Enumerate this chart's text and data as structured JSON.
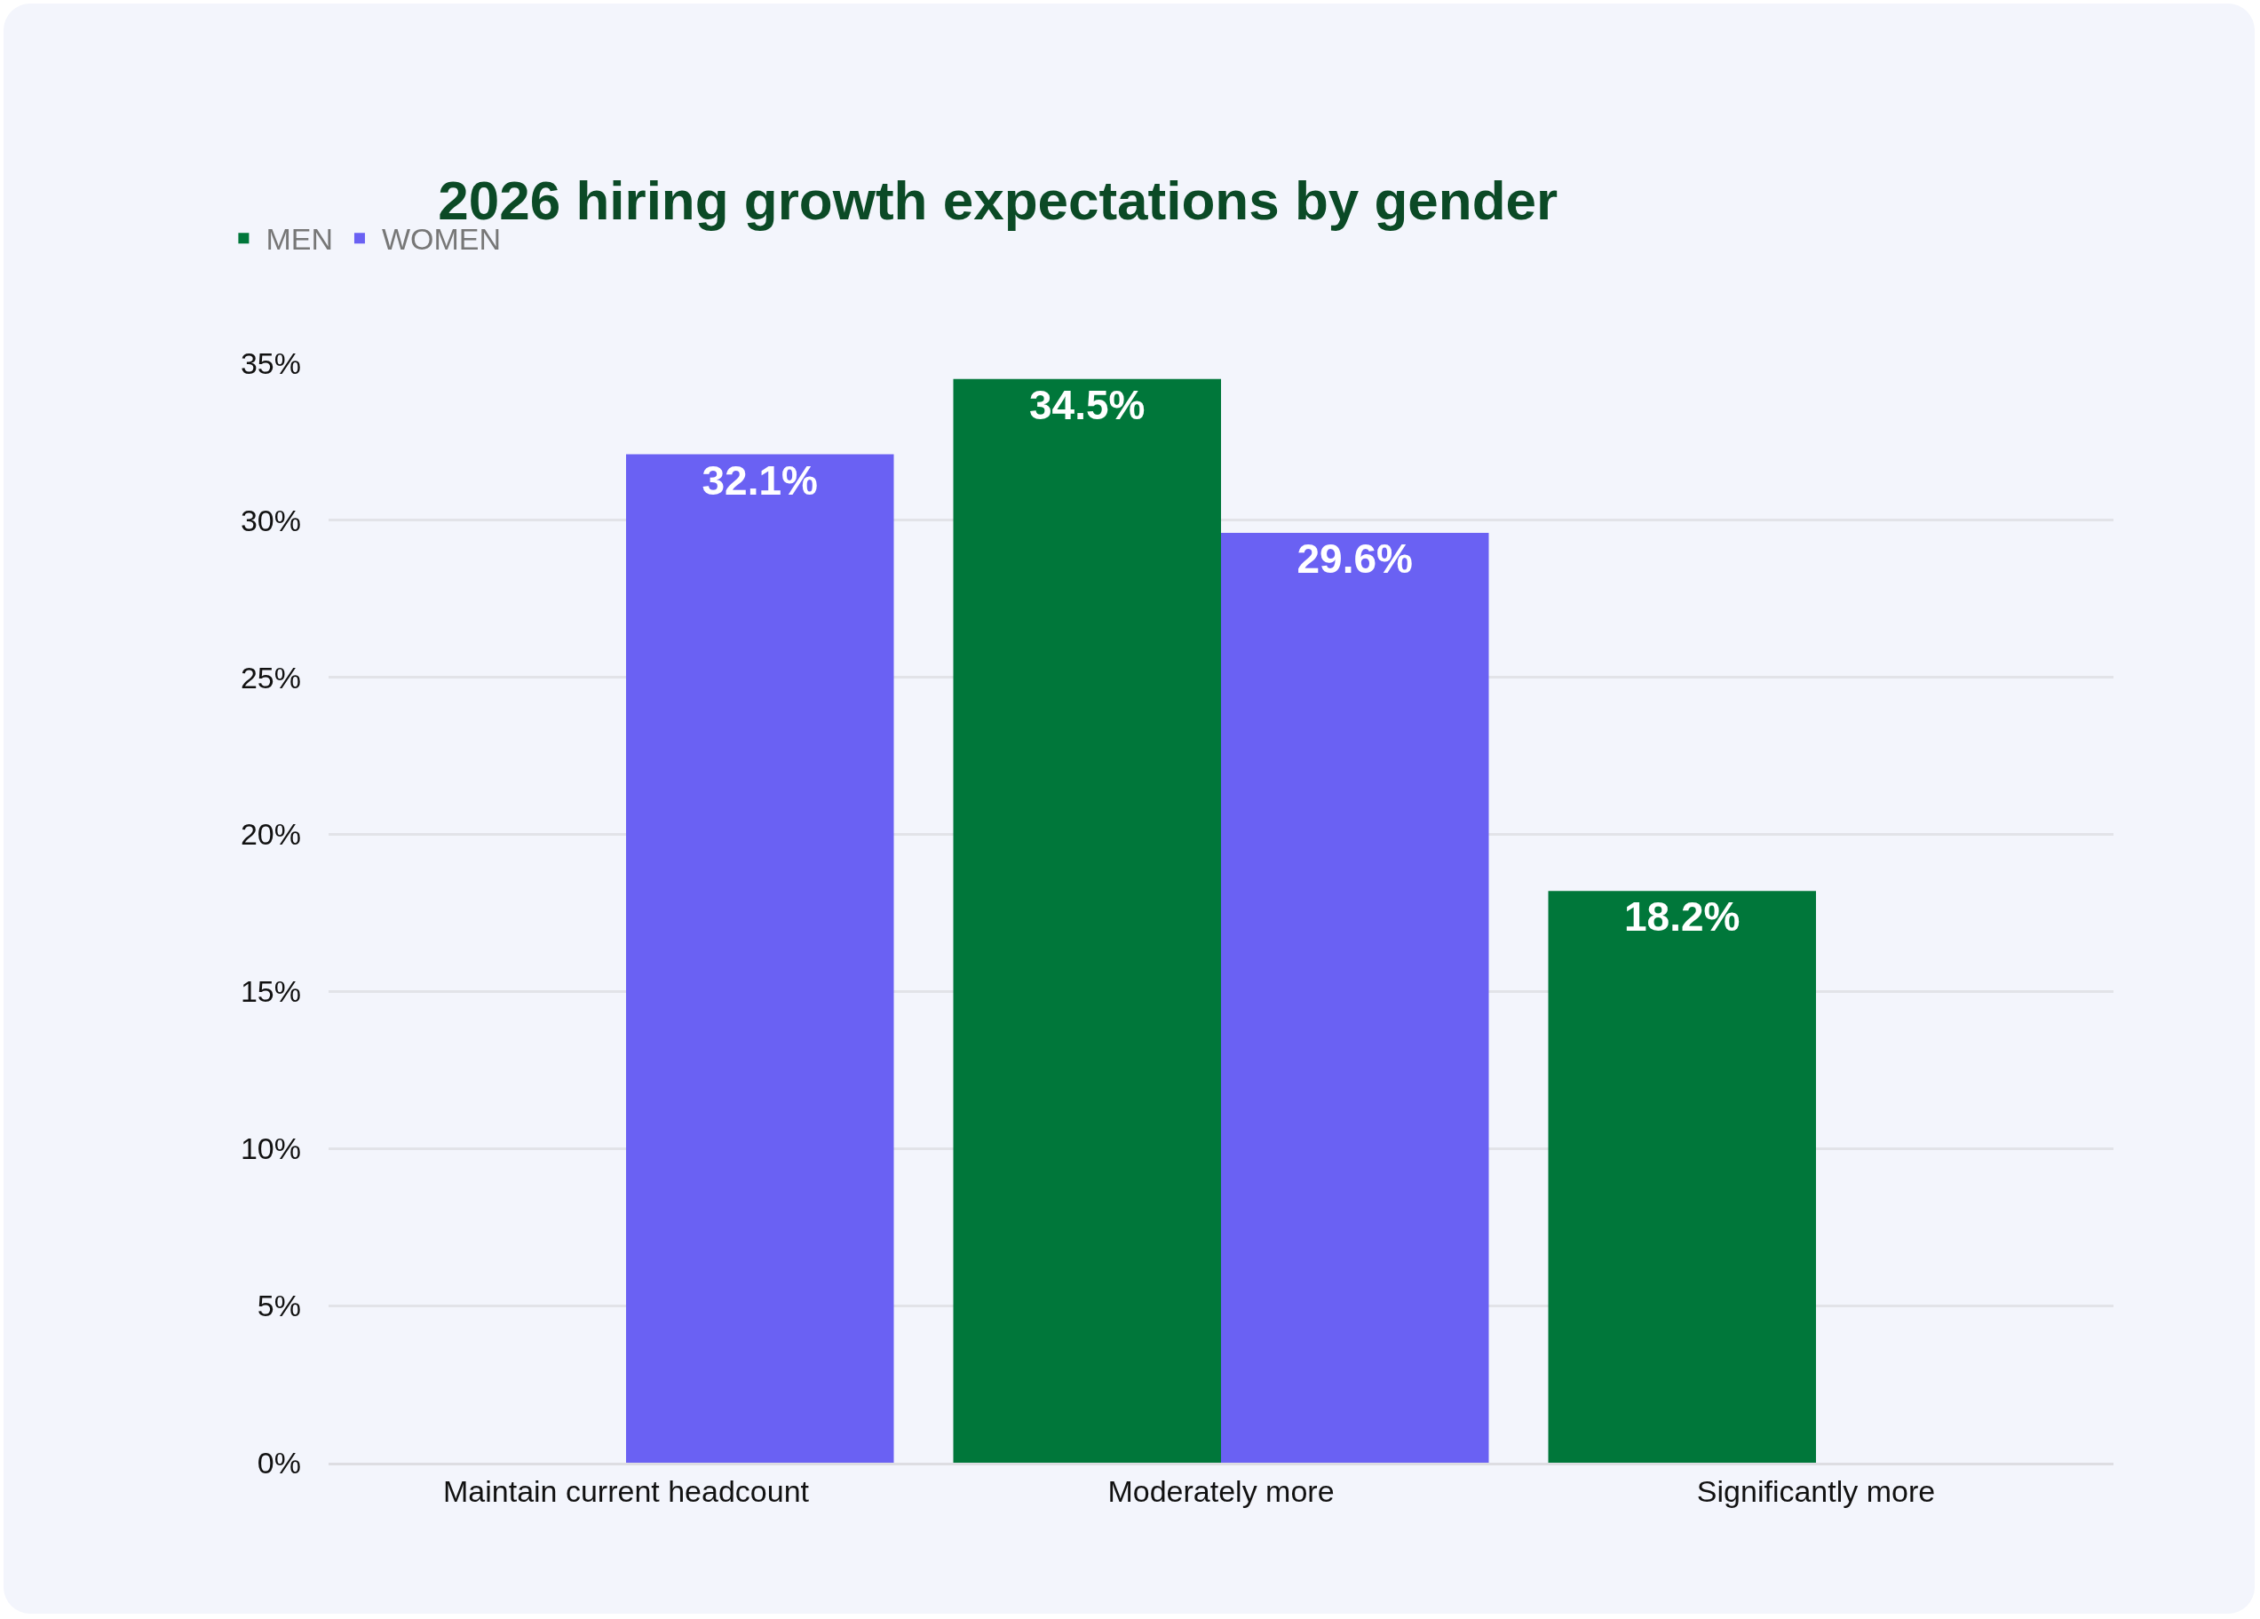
{
  "chart_data": {
    "type": "bar",
    "title": "2026 hiring growth expectations by gender",
    "categories": [
      "Maintain current headcount",
      "Moderately more",
      "Significantly more"
    ],
    "series": [
      {
        "name": "MEN",
        "color": "#00773a",
        "values": [
          null,
          34.5,
          18.2
        ],
        "value_labels": [
          null,
          "34.5%",
          "18.2%"
        ]
      },
      {
        "name": "WOMEN",
        "color": "#6a61f3",
        "values": [
          32.1,
          29.6,
          null
        ],
        "value_labels": [
          "32.1%",
          "29.6%",
          null
        ]
      }
    ],
    "ylim": [
      0,
      35
    ],
    "yticks": [
      {
        "value": 0,
        "label": "0%"
      },
      {
        "value": 5,
        "label": "5%"
      },
      {
        "value": 10,
        "label": "10%"
      },
      {
        "value": 15,
        "label": "15%"
      },
      {
        "value": 20,
        "label": "20%"
      },
      {
        "value": 25,
        "label": "25%"
      },
      {
        "value": 30,
        "label": "30%"
      },
      {
        "value": 35,
        "label": "35%"
      }
    ],
    "grid": "y",
    "legend": "top left"
  }
}
